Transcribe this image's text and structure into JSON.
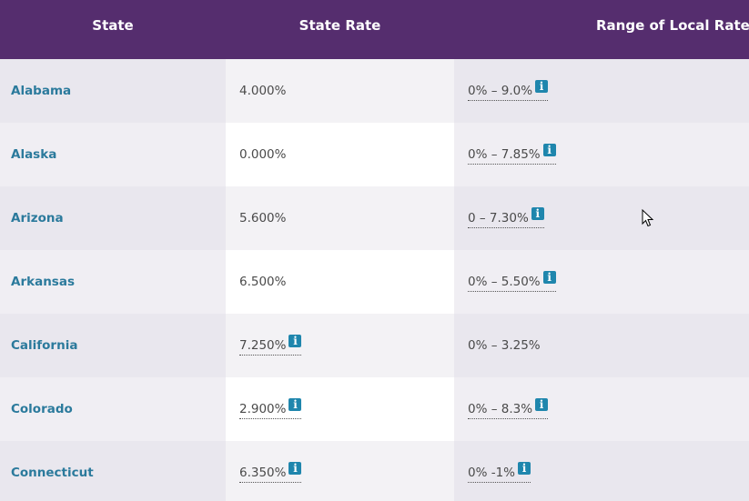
{
  "table": {
    "headers": {
      "state": "State",
      "state_rate": "State Rate",
      "local_rates": "Range of Local Rates"
    },
    "rows": [
      {
        "state": "Alabama",
        "state_rate": "4.000%",
        "state_rate_info": false,
        "local_range": "0% – 9.0%",
        "local_info": true,
        "info_icon": "i"
      },
      {
        "state": "Alaska",
        "state_rate": "0.000%",
        "state_rate_info": false,
        "local_range": "0% – 7.85%",
        "local_info": true,
        "info_icon": "i"
      },
      {
        "state": "Arizona",
        "state_rate": "5.600%",
        "state_rate_info": false,
        "local_range": "0 – 7.30%",
        "local_info": true,
        "info_icon": "i"
      },
      {
        "state": "Arkansas",
        "state_rate": "6.500%",
        "state_rate_info": false,
        "local_range": "0% – 5.50%",
        "local_info": true,
        "info_icon": "i"
      },
      {
        "state": "California",
        "state_rate": "7.250%",
        "state_rate_info": true,
        "local_range": "0% – 3.25%",
        "local_info": false,
        "info_icon": "i"
      },
      {
        "state": "Colorado",
        "state_rate": "2.900%",
        "state_rate_info": true,
        "local_range": "0% – 8.3%",
        "local_info": true,
        "info_icon": "i"
      },
      {
        "state": "Connecticut",
        "state_rate": "6.350%",
        "state_rate_info": true,
        "local_range": "0% -1%",
        "local_info": true,
        "info_icon": "i"
      }
    ]
  },
  "colors": {
    "header_bg": "#552d6e",
    "state_link": "#2b7a9c",
    "info_icon_bg": "#1f86ad"
  }
}
